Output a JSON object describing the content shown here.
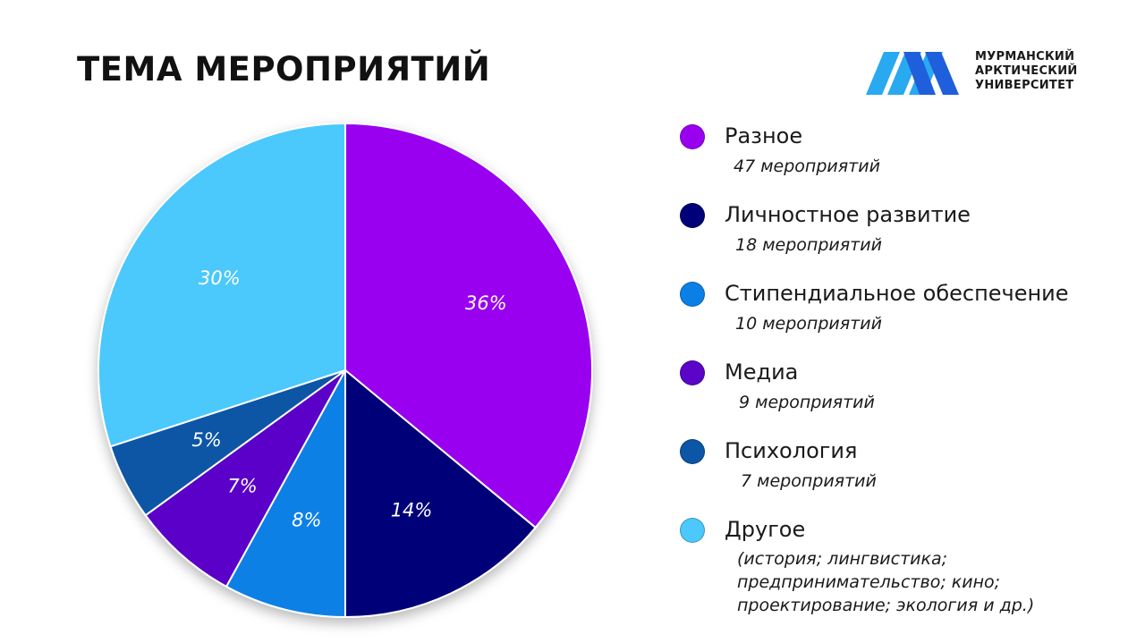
{
  "header": {
    "title": "ТЕМА МЕРОПРИЯТИЙ"
  },
  "logo": {
    "icon": "mau-logo-icon",
    "lines": [
      "МУРМАНСКИЙ",
      "АРКТИЧЕСКИЙ",
      "УНИВЕРСИТЕТ"
    ],
    "colors": {
      "light": "#29a9f0",
      "dark": "#1f5fdc"
    }
  },
  "chart_data": {
    "type": "pie",
    "title": "ТЕМА МЕРОПРИЯТИЙ",
    "slices": [
      {
        "name": "Разное",
        "value": 36,
        "label": "36%",
        "count_text": "47 мероприятий",
        "color": "#9a00f0"
      },
      {
        "name": "Личностное развитие",
        "value": 14,
        "label": "14%",
        "count_text": "18 мероприятий",
        "color": "#000078"
      },
      {
        "name": "Стипендиальное обеспечение",
        "value": 8,
        "label": "8%",
        "count_text": "10 мероприятий",
        "color": "#0a80e6"
      },
      {
        "name": "Медиа",
        "value": 7,
        "label": "7%",
        "count_text": "9 мероприятий",
        "color": "#5a05c8"
      },
      {
        "name": "Психология",
        "value": 5,
        "label": "5%",
        "count_text": "7 мероприятий",
        "color": "#0c56a6"
      },
      {
        "name": "Другое",
        "value": 30,
        "label": "30%",
        "count_text": "(история; лингвистика; предпринимательство; кино; проектирование; экология и др.)",
        "color": "#4cc8fc"
      }
    ],
    "start": "12 o'clock",
    "direction": "clockwise",
    "legend_position": "right"
  }
}
